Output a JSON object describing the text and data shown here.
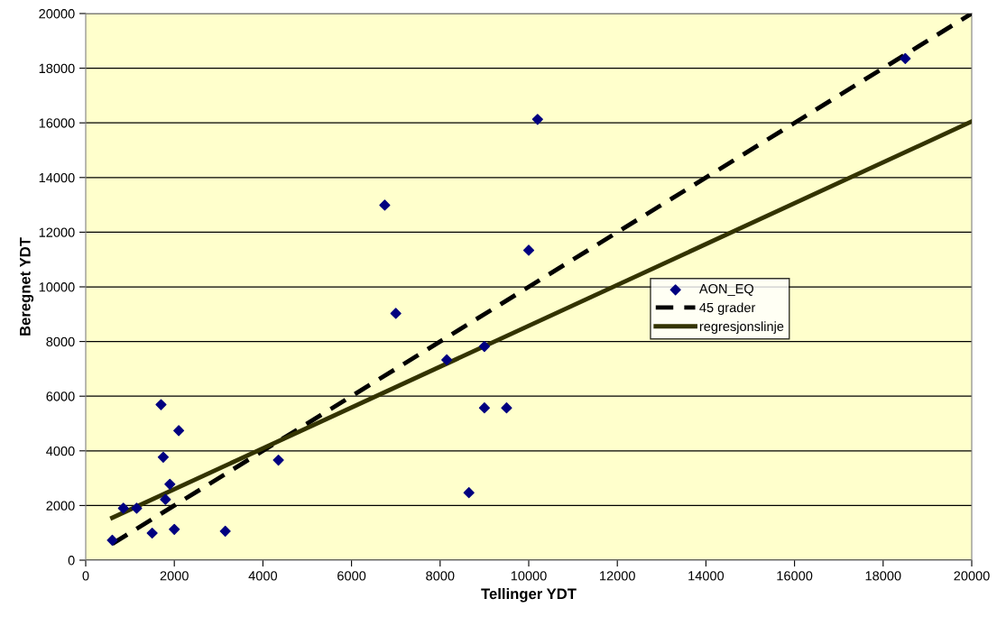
{
  "chart_data": {
    "type": "scatter",
    "xlabel": "Tellinger YDT",
    "ylabel": "Beregnet YDT",
    "xlim": [
      0,
      20000
    ],
    "ylim": [
      0,
      20000
    ],
    "xticks": [
      0,
      2000,
      4000,
      6000,
      8000,
      10000,
      12000,
      14000,
      16000,
      18000,
      20000
    ],
    "yticks": [
      0,
      2000,
      4000,
      6000,
      8000,
      10000,
      12000,
      14000,
      16000,
      18000,
      20000
    ],
    "grid": "y",
    "legend": "right",
    "series": [
      {
        "name": "AON_EQ",
        "color": "#000080",
        "marker": "diamond",
        "x": [
          600,
          850,
          1150,
          1500,
          1700,
          1750,
          1800,
          1900,
          2000,
          2100,
          3150,
          4350,
          6750,
          7000,
          8150,
          8650,
          9000,
          9000,
          9500,
          10000,
          10200,
          18500
        ],
        "values": [
          730,
          1900,
          1900,
          990,
          5690,
          3770,
          2220,
          2780,
          1130,
          4740,
          1060,
          3660,
          12990,
          9030,
          7330,
          2470,
          7820,
          5570,
          5570,
          11340,
          16130,
          18350
        ]
      },
      {
        "name": "45 grader",
        "type": "line",
        "color": "#000000",
        "line_style": "dashed",
        "x": [
          600,
          20000
        ],
        "values": [
          600,
          20000
        ]
      },
      {
        "name": "regresjonslinje",
        "type": "line",
        "color": "#333300",
        "line_style": "solid",
        "x": [
          600,
          20000
        ],
        "values": [
          1550,
          16050
        ]
      }
    ]
  }
}
